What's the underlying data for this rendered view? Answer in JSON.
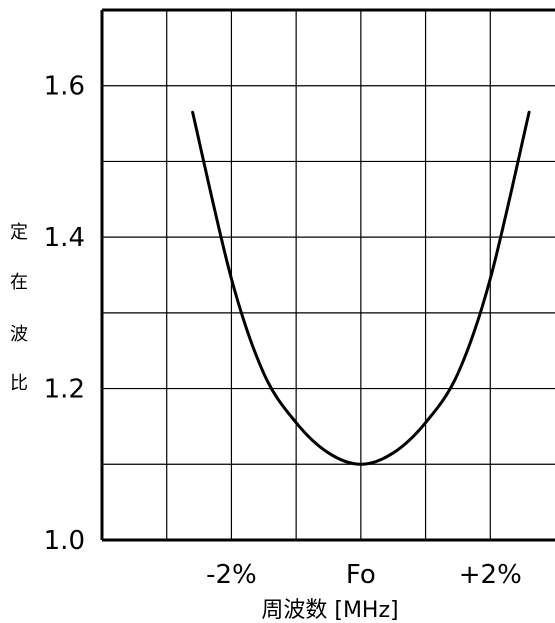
{
  "chart_data": {
    "type": "line",
    "title": "",
    "xlabel": "周波数 [MHz]",
    "ylabel": "定在波比",
    "xlim": [
      -4,
      3
    ],
    "ylim": [
      1.0,
      1.7
    ],
    "grid": true,
    "x_ticks": [
      {
        "value": -2,
        "label": "-2%"
      },
      {
        "value": 0,
        "label": "Fo"
      },
      {
        "value": 2,
        "label": "+2%"
      }
    ],
    "y_ticks": [
      {
        "value": 1.0,
        "label": "1.0"
      },
      {
        "value": 1.2,
        "label": "1.2"
      },
      {
        "value": 1.4,
        "label": "1.4"
      },
      {
        "value": 1.6,
        "label": "1.6"
      }
    ],
    "series": [
      {
        "color": "#000000",
        "x": [
          -2.6,
          -2.0,
          -1.5,
          -1.0,
          -0.5,
          0.0,
          0.5,
          1.0,
          1.5,
          2.0,
          2.6
        ],
        "y": [
          1.565,
          1.345,
          1.22,
          1.155,
          1.115,
          1.1,
          1.115,
          1.155,
          1.22,
          1.345,
          1.565
        ]
      }
    ]
  }
}
